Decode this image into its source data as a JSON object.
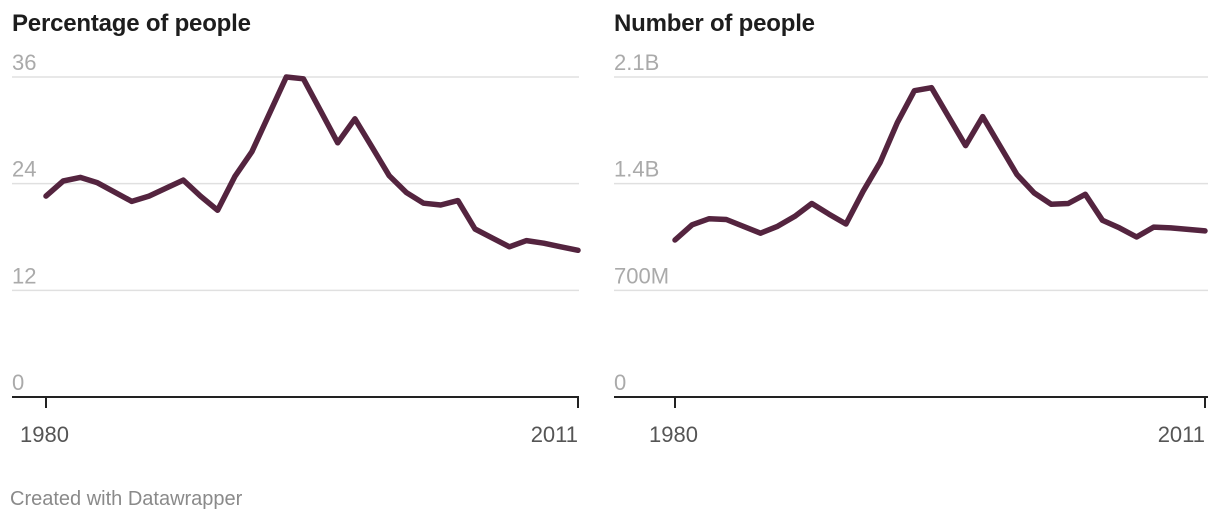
{
  "chart_data": [
    {
      "type": "line",
      "title": "Percentage of people",
      "series_color": "#54243f",
      "ylim": [
        0,
        36
      ],
      "yticks": [
        0,
        12,
        24,
        36
      ],
      "ytick_labels": [
        "0",
        "12",
        "24",
        "36"
      ],
      "xlim": [
        1980,
        2011
      ],
      "x_tick_labels": [
        "1980",
        "2011"
      ],
      "x": [
        1980,
        1981,
        1982,
        1983,
        1985,
        1986,
        1987,
        1988,
        1989,
        1990,
        1991,
        1992,
        1993,
        1994,
        1995,
        1996,
        1997,
        1998,
        1999,
        2000,
        2001,
        2002,
        2003,
        2004,
        2005,
        2006,
        2007,
        2008,
        2009,
        2010,
        2011
      ],
      "values": [
        22.6,
        24.3,
        24.7,
        24.1,
        22.0,
        22.6,
        23.5,
        24.4,
        22.6,
        21.0,
        24.8,
        27.6,
        31.8,
        36.0,
        35.8,
        32.2,
        28.6,
        31.3,
        28.1,
        24.9,
        23.0,
        21.8,
        21.6,
        22.1,
        18.9,
        17.9,
        16.9,
        17.6,
        17.3,
        16.9,
        16.5
      ]
    },
    {
      "type": "line",
      "title": "Number of people",
      "series_color": "#54243f",
      "ylim": [
        0,
        2100000000
      ],
      "yticks": [
        0,
        700000000,
        1400000000,
        2100000000
      ],
      "ytick_labels": [
        "0",
        "700M",
        "1.4B",
        "2.1B"
      ],
      "xlim": [
        1980,
        2011
      ],
      "x_tick_labels": [
        "1980",
        "2011"
      ],
      "x": [
        1980,
        1981,
        1982,
        1983,
        1985,
        1986,
        1987,
        1988,
        1989,
        1990,
        1991,
        1992,
        1993,
        1994,
        1995,
        1996,
        1997,
        1998,
        1999,
        2000,
        2001,
        2002,
        2003,
        2004,
        2005,
        2006,
        2007,
        2008,
        2009,
        2010,
        2011
      ],
      "values": [
        1030000000,
        1130000000,
        1170000000,
        1165000000,
        1075000000,
        1120000000,
        1185000000,
        1270000000,
        1200000000,
        1135000000,
        1350000000,
        1540000000,
        1800000000,
        2010000000,
        2030000000,
        1840000000,
        1650000000,
        1840000000,
        1650000000,
        1460000000,
        1340000000,
        1265000000,
        1270000000,
        1330000000,
        1160000000,
        1110000000,
        1050000000,
        1115000000,
        1110000000,
        1100000000,
        1090000000
      ]
    }
  ],
  "footer": {
    "credit": "Created with Datawrapper"
  }
}
